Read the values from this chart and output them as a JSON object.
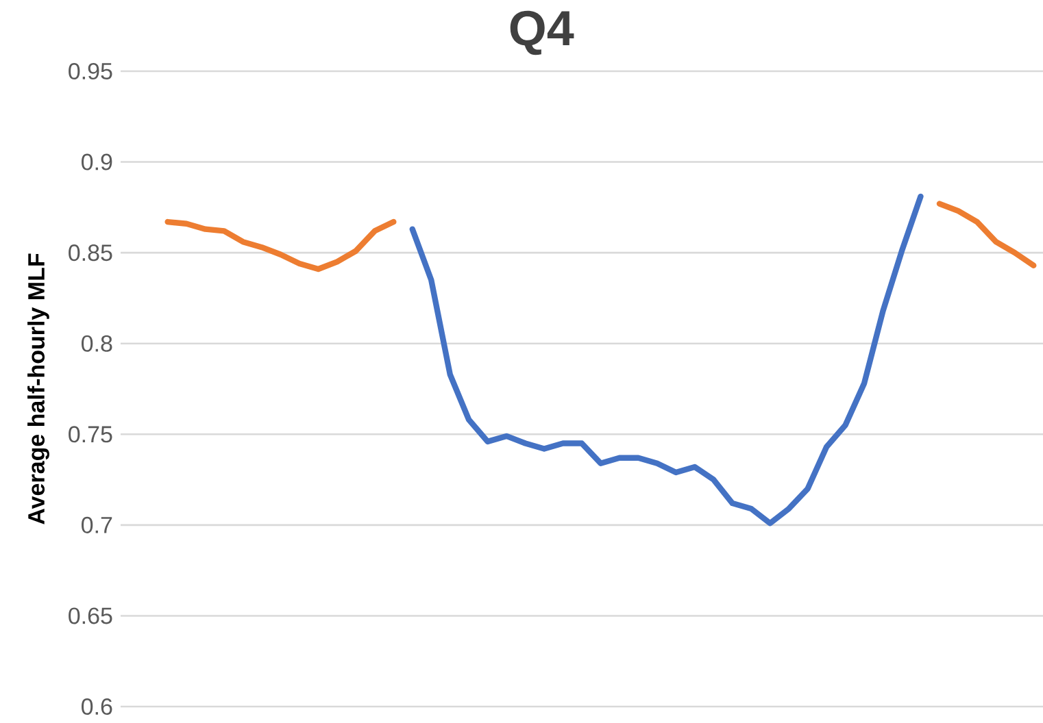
{
  "chart_data": {
    "type": "line",
    "title": "Q4",
    "ylabel": "Average half-hourly MLF",
    "categories": [
      null,
      null,
      null,
      null,
      null,
      null,
      null,
      null,
      null,
      null,
      null,
      null,
      null,
      null,
      null,
      null,
      null,
      null,
      null,
      null,
      null,
      null,
      null,
      null,
      null,
      null,
      null,
      null,
      null,
      null,
      null,
      null,
      null,
      null,
      null,
      null,
      null,
      null,
      null,
      null,
      null,
      null,
      null,
      null,
      null,
      null,
      null,
      null,
      null
    ],
    "series": [
      {
        "color": "#ed7d31",
        "values": [
          null,
          null,
          0.867,
          0.866,
          0.863,
          0.862,
          0.856,
          0.853,
          0.849,
          0.844,
          0.841,
          0.845,
          0.851,
          0.862,
          0.867,
          null,
          null,
          null,
          null,
          null,
          null,
          null,
          null,
          null,
          null,
          null,
          null,
          null,
          null,
          null,
          null,
          null,
          null,
          null,
          null,
          null,
          null,
          null,
          null,
          null,
          null,
          null,
          null,
          null,
          null,
          null,
          null,
          null,
          null
        ]
      },
      {
        "color": "#4472c4",
        "values": [
          null,
          null,
          null,
          null,
          null,
          null,
          null,
          null,
          null,
          null,
          null,
          null,
          null,
          null,
          null,
          0.863,
          0.835,
          0.783,
          0.758,
          0.746,
          0.749,
          0.745,
          0.742,
          0.745,
          0.745,
          0.734,
          0.737,
          0.737,
          0.734,
          0.729,
          0.732,
          0.725,
          0.712,
          0.709,
          0.701,
          0.709,
          0.72,
          0.743,
          0.755,
          0.778,
          0.818,
          0.851,
          0.881,
          null,
          null,
          null,
          null,
          null,
          null
        ]
      },
      {
        "color": "#ed7d31",
        "values": [
          null,
          null,
          null,
          null,
          null,
          null,
          null,
          null,
          null,
          null,
          null,
          null,
          null,
          null,
          null,
          null,
          null,
          null,
          null,
          null,
          null,
          null,
          null,
          null,
          null,
          null,
          null,
          null,
          null,
          null,
          null,
          null,
          null,
          null,
          null,
          null,
          null,
          null,
          null,
          null,
          null,
          null,
          null,
          0.877,
          0.873,
          0.867,
          0.856,
          0.85,
          0.843
        ]
      }
    ],
    "ylim": [
      0.6,
      0.95
    ],
    "yticks": [
      0.6,
      0.65,
      0.7,
      0.75,
      0.8,
      0.85,
      0.9,
      0.95
    ],
    "grid": "y",
    "tick_labels": "y",
    "line_style": "solid"
  }
}
